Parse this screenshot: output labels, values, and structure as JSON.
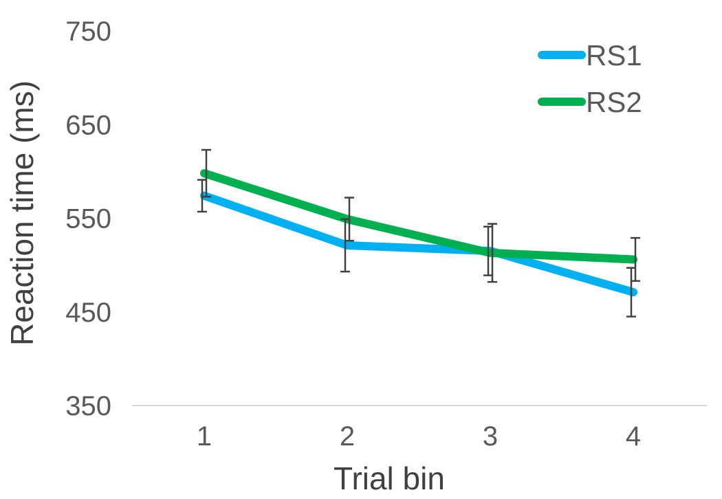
{
  "chart_data": {
    "type": "line",
    "xlabel": "Trial bin",
    "ylabel": "Reaction time (ms)",
    "ylim": [
      350,
      750
    ],
    "yticks": [
      350,
      450,
      550,
      650,
      750
    ],
    "categories": [
      "1",
      "2",
      "3",
      "4"
    ],
    "grid": false,
    "legend_position": "top-right",
    "error_bars": true,
    "series": [
      {
        "name": "RS1",
        "color": "#00B0F0",
        "values": [
          574,
          521,
          515,
          471
        ],
        "error": [
          17,
          28,
          26,
          26
        ]
      },
      {
        "name": "RS2",
        "color": "#00B050",
        "values": [
          598,
          549,
          513,
          506
        ],
        "error": [
          25,
          23,
          31,
          23
        ]
      }
    ]
  }
}
